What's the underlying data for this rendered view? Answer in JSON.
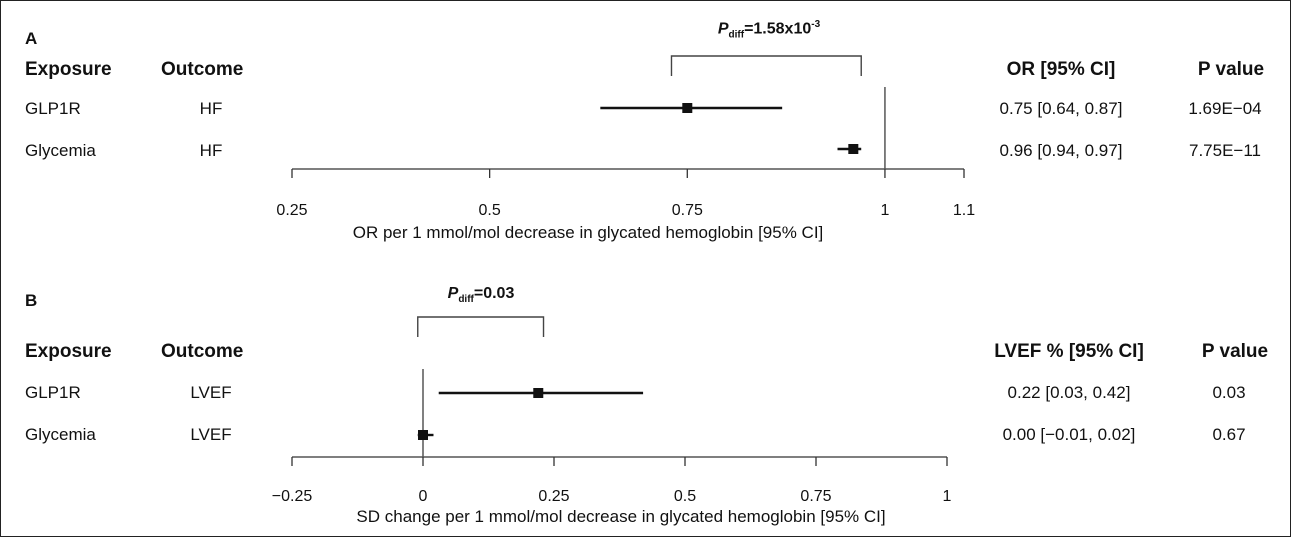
{
  "panels": [
    {
      "letter": "A",
      "pdiff_label": "P",
      "pdiff_sub": "diff",
      "pdiff_eq": "=1.58x10",
      "pdiff_sup": "-3",
      "headers": {
        "exposure": "Exposure",
        "outcome": "Outcome",
        "estimate": "OR [95% CI]",
        "pvalue": "P value"
      },
      "rows": [
        {
          "exposure": "GLP1R",
          "outcome": "HF",
          "estimate_text": "0.75 [0.64, 0.87]",
          "pvalue": "1.69E−04"
        },
        {
          "exposure": "Glycemia",
          "outcome": "HF",
          "estimate_text": "0.96 [0.94, 0.97]",
          "pvalue": "7.75E−11"
        }
      ],
      "xlabel": "OR per 1 mmol/mol decrease in glycated hemoglobin [95% CI]",
      "tick_labels": [
        "0.25",
        "0.5",
        "0.75",
        "1",
        "1.1"
      ]
    },
    {
      "letter": "B",
      "pdiff_label": "P",
      "pdiff_sub": "diff",
      "pdiff_eq": "=0.03",
      "pdiff_sup": "",
      "headers": {
        "exposure": "Exposure",
        "outcome": "Outcome",
        "estimate": "LVEF % [95% CI]",
        "pvalue": "P value"
      },
      "rows": [
        {
          "exposure": "GLP1R",
          "outcome": "LVEF",
          "estimate_text": "0.22 [0.03, 0.42]",
          "pvalue": "0.03"
        },
        {
          "exposure": "Glycemia",
          "outcome": "LVEF",
          "estimate_text": "0.00 [−0.01, 0.02]",
          "pvalue": "0.67"
        }
      ],
      "xlabel": "SD change per 1 mmol/mol decrease in glycated hemoglobin [95% CI]",
      "tick_labels": [
        "−0.25",
        "0",
        "0.25",
        "0.5",
        "0.75",
        "1"
      ]
    }
  ],
  "chart_data": [
    {
      "type": "scatter",
      "subtype": "forest",
      "title": "A",
      "xlabel": "OR per 1 mmol/mol decrease in glycated hemoglobin [95% CI]",
      "xlim": [
        0.25,
        1.1
      ],
      "xticks": [
        0.25,
        0.5,
        0.75,
        1,
        1.1
      ],
      "reference_line": 1,
      "categories": [
        "GLP1R",
        "Glycemia"
      ],
      "estimates": [
        0.75,
        0.96
      ],
      "lower": [
        0.64,
        0.94
      ],
      "upper": [
        0.87,
        0.97
      ],
      "pdiff_bracket": [
        0.73,
        0.97
      ]
    },
    {
      "type": "scatter",
      "subtype": "forest",
      "title": "B",
      "xlabel": "SD change per 1 mmol/mol decrease in glycated hemoglobin [95% CI]",
      "xlim": [
        -0.25,
        1
      ],
      "xticks": [
        -0.25,
        0,
        0.25,
        0.5,
        0.75,
        1
      ],
      "reference_line": 0,
      "categories": [
        "GLP1R",
        "Glycemia"
      ],
      "estimates": [
        0.22,
        0.0
      ],
      "lower": [
        0.03,
        -0.01
      ],
      "upper": [
        0.42,
        0.02
      ],
      "pdiff_bracket": [
        -0.01,
        0.23
      ]
    }
  ]
}
